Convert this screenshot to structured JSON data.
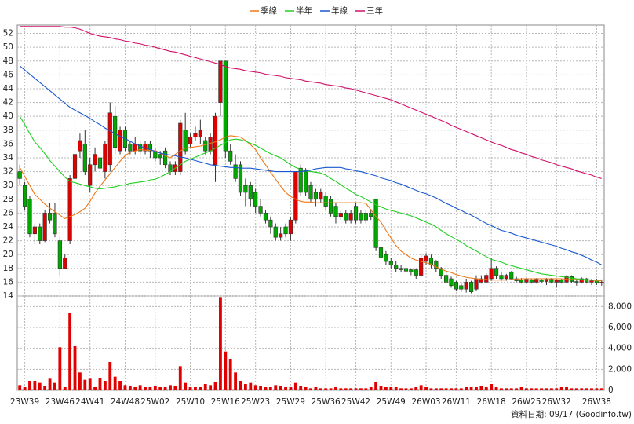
{
  "chart_data": [
    {
      "type": "candlestick",
      "categories": [
        null,
        "23W39",
        null,
        null,
        null,
        null,
        null,
        null,
        "23W46",
        null,
        null,
        null,
        null,
        null,
        "24W41",
        null,
        null,
        null,
        null,
        null,
        null,
        "24W48",
        null,
        null,
        null,
        null,
        null,
        "25W02",
        null,
        null,
        null,
        null,
        null,
        null,
        "25W10",
        null,
        null,
        null,
        null,
        null,
        null,
        "25W16",
        null,
        null,
        null,
        null,
        null,
        "25W23",
        null,
        null,
        null,
        null,
        null,
        null,
        "25W29",
        null,
        null,
        null,
        null,
        null,
        null,
        "25W36",
        null,
        null,
        null,
        null,
        null,
        "25W42",
        null,
        null,
        null,
        null,
        null,
        null,
        "25W49",
        null,
        null,
        null,
        null,
        null,
        null,
        "26W03",
        null,
        null,
        null,
        null,
        null,
        "26W11",
        null,
        null,
        null,
        null,
        null,
        null,
        "26W18",
        null,
        null,
        null,
        null,
        null,
        null,
        "26W25",
        null,
        null,
        null,
        null,
        null,
        "26W32",
        null,
        null,
        null,
        null,
        null,
        null,
        null,
        "26W38",
        null
      ],
      "open": [
        32,
        30,
        28,
        23,
        24,
        22,
        26,
        26,
        22,
        18,
        22,
        31,
        35,
        36,
        30,
        33,
        34,
        32,
        33,
        40,
        35,
        38,
        36,
        35,
        36,
        35,
        36,
        35,
        34.5,
        35,
        33,
        32,
        32,
        38,
        36,
        37,
        37,
        36.5,
        35,
        33,
        42,
        48,
        35,
        33,
        33,
        30,
        30,
        29,
        27,
        26,
        25,
        24,
        22.5,
        24,
        23,
        25,
        32.5,
        32,
        30,
        29,
        28,
        28.5,
        28,
        27,
        25.5,
        26,
        25,
        27,
        26,
        26,
        26,
        28,
        21,
        20,
        19,
        18.5,
        18,
        18,
        17.8,
        17.8,
        17,
        19,
        19.5,
        19,
        18,
        17,
        16.5,
        16,
        15.5,
        15,
        16,
        15,
        16,
        16,
        16.5,
        18,
        17,
        16.5,
        17.5,
        16.5,
        16.3,
        16,
        16.3,
        16,
        16.3,
        16.1,
        16.4,
        16,
        16.3,
        16,
        16.8,
        16.1,
        16,
        16.5,
        16,
        16.2,
        15.9
      ],
      "high": [
        33,
        30.5,
        28.5,
        24.5,
        24.5,
        26.5,
        27.5,
        27.5,
        22.5,
        20,
        31.5,
        39.5,
        37.5,
        38,
        34,
        35.5,
        36,
        36.5,
        42,
        41.5,
        38.5,
        38.5,
        36.5,
        37,
        36.5,
        36.5,
        36.5,
        35.5,
        35,
        35.5,
        33.5,
        33.5,
        39.5,
        40.5,
        37.5,
        38.5,
        39.5,
        37,
        37.5,
        40.5,
        48,
        48,
        36,
        34.5,
        33.5,
        31,
        30.5,
        29.5,
        28,
        26.5,
        25.5,
        24.5,
        24,
        24.5,
        25.5,
        32,
        33,
        32.5,
        30.5,
        29.5,
        29.5,
        29,
        28.5,
        27.5,
        26.5,
        26.5,
        26.5,
        27.5,
        26.5,
        26.5,
        26.5,
        28,
        21.5,
        20.5,
        19.5,
        19,
        18.5,
        18.3,
        18,
        18,
        20,
        20.2,
        20,
        19.2,
        18.2,
        17.5,
        16.8,
        16.2,
        16,
        16.5,
        16.2,
        17,
        17,
        17.3,
        19.5,
        18.3,
        17.4,
        17.2,
        17.6,
        16.8,
        16.6,
        16.6,
        16.5,
        16.6,
        16.5,
        16.6,
        16.6,
        16.5,
        16.5,
        17,
        17,
        16.5,
        16.7,
        16.6,
        16.5,
        16.5,
        16.4
      ],
      "low": [
        30,
        26.5,
        22.5,
        21.5,
        21.5,
        21.8,
        24.5,
        22.5,
        17,
        18,
        21.5,
        30.5,
        34,
        31.5,
        29,
        32,
        31.5,
        31,
        32,
        34.5,
        34.5,
        35,
        34.5,
        34.5,
        34.5,
        34.5,
        34,
        33.5,
        33,
        32.5,
        31.5,
        31.5,
        31.5,
        34.5,
        35.5,
        36.5,
        36,
        34.5,
        34.5,
        30.5,
        40,
        34,
        33,
        30.5,
        28.5,
        27,
        27,
        26,
        25.5,
        24.5,
        23,
        22,
        22,
        22.5,
        22,
        24.5,
        28.5,
        28.5,
        27.5,
        27,
        27.5,
        26.5,
        25.5,
        24.5,
        25,
        24.5,
        24.5,
        24.5,
        24.5,
        24.5,
        25,
        20.5,
        19,
        18.5,
        18,
        17.5,
        17.5,
        17.2,
        17,
        16.5,
        16.8,
        18.5,
        18,
        17.5,
        16.5,
        15.8,
        15.2,
        14.8,
        14.6,
        14.5,
        14.4,
        14.8,
        15.8,
        15.8,
        16.2,
        16.5,
        16.2,
        16.2,
        16.3,
        16,
        15.8,
        15.8,
        15.8,
        15.8,
        15.8,
        15.6,
        15.8,
        15.2,
        15.8,
        15.8,
        15.9,
        15.5,
        15.8,
        15.8,
        15.6,
        15.6,
        15.5
      ],
      "close": [
        31,
        27,
        23,
        24,
        22,
        26,
        25,
        23,
        18,
        19.5,
        31,
        34.5,
        36.5,
        32,
        33,
        34.5,
        32.5,
        36,
        40.5,
        35.5,
        38,
        35.5,
        35,
        36,
        35,
        36,
        35,
        34,
        34,
        33,
        32,
        33,
        39,
        35,
        37,
        37.5,
        38,
        35,
        37,
        40,
        48,
        35,
        33.5,
        31,
        29,
        29,
        28,
        27,
        26,
        25,
        24,
        22.5,
        23,
        23,
        25,
        32,
        29,
        29,
        28,
        28,
        29,
        27,
        26,
        25.5,
        26,
        25,
        26,
        25,
        25,
        25,
        25.5,
        21,
        19.5,
        19,
        18.5,
        18,
        17.8,
        17.6,
        17.5,
        17,
        19.5,
        19.8,
        18.5,
        18,
        17,
        16,
        15.5,
        15,
        15,
        16,
        14.6,
        16.5,
        16.5,
        17,
        18,
        17,
        16.5,
        17,
        16.5,
        16.2,
        16,
        16.4,
        16,
        16.4,
        16.1,
        16.4,
        16,
        16.3,
        16,
        16.8,
        16.1,
        16,
        16.5,
        16,
        16.2,
        15.9,
        16
      ],
      "up_color": "#e00000",
      "down_color": "#00a800",
      "series": [
        {
          "name": "季線",
          "color": "#f07818",
          "values": [
            32.6,
            31.3,
            30.0,
            28.7,
            28.0,
            27.3,
            26.7,
            26.2,
            25.7,
            25.2,
            25.5,
            25.8,
            26.2,
            26.7,
            27.7,
            28.9,
            29.9,
            30.8,
            31.7,
            32.6,
            33.5,
            34.3,
            34.8,
            35.0,
            35.2,
            35.1,
            35.1,
            35.0,
            34.7,
            34.3,
            34.0,
            34.5,
            35.0,
            35.4,
            35.5,
            35.6,
            35.7,
            35.9,
            36.1,
            36.3,
            36.6,
            37.0,
            37.2,
            37.1,
            37.0,
            36.5,
            35.9,
            35.2,
            34.0,
            33.0,
            31.9,
            30.9,
            29.9,
            29.0,
            28.4,
            28.0,
            27.7,
            27.6,
            27.6,
            27.5,
            27.5,
            27.5,
            27.5,
            27.5,
            27.5,
            27.5,
            27.5,
            27.5,
            27.5,
            27.4,
            26.5,
            25.5,
            24.7,
            23.5,
            22.4,
            21.3,
            20.5,
            20.0,
            19.5,
            19.2,
            19.0,
            18.8,
            18.6,
            18.2,
            17.9,
            17.6,
            17.4,
            17.1,
            16.9,
            16.7,
            16.6,
            16.5,
            16.4,
            16.4,
            16.3,
            16.3,
            16.3,
            16.3,
            16.4,
            16.4,
            16.5,
            16.5,
            16.5,
            16.5,
            16.5,
            16.5,
            16.5,
            16.5,
            16.5,
            16.4,
            16.4,
            16.4,
            16.3,
            16.3,
            16.3,
            16.2,
            16.2
          ]
        },
        {
          "name": "半年",
          "color": "#20d020",
          "values": [
            40.0,
            38.8,
            37.5,
            36.3,
            35.5,
            34.6,
            33.6,
            32.8,
            32.0,
            31.2,
            30.6,
            30.4,
            30.2,
            30.0,
            29.8,
            29.6,
            29.5,
            29.6,
            29.7,
            29.8,
            30.0,
            30.1,
            30.3,
            30.4,
            30.5,
            30.6,
            30.8,
            30.9,
            31.2,
            31.6,
            32.0,
            32.5,
            33.0,
            33.5,
            33.8,
            34.1,
            34.4,
            34.7,
            35.0,
            35.4,
            35.8,
            36.2,
            36.6,
            36.7,
            36.6,
            36.4,
            36.1,
            35.8,
            35.4,
            35.0,
            34.6,
            34.3,
            34.0,
            33.5,
            33.0,
            32.6,
            32.3,
            32.1,
            32.0,
            31.9,
            31.8,
            31.5,
            31.0,
            30.6,
            30.1,
            29.6,
            29.2,
            28.7,
            28.4,
            28.0,
            27.6,
            27.2,
            26.9,
            26.6,
            26.4,
            26.2,
            26.0,
            25.8,
            25.6,
            25.3,
            25.0,
            24.7,
            24.4,
            24.0,
            23.5,
            23.0,
            22.6,
            22.2,
            21.8,
            21.3,
            20.9,
            20.5,
            20.1,
            19.7,
            19.3,
            19.1,
            18.9,
            18.6,
            18.4,
            18.2,
            18.0,
            17.8,
            17.6,
            17.4,
            17.2,
            17.1,
            17.0,
            16.9,
            16.8,
            16.7,
            16.6,
            16.5,
            16.4,
            16.4,
            16.3,
            16.3,
            16.3
          ]
        },
        {
          "name": "年線",
          "color": "#1858d0",
          "values": [
            47.3,
            46.7,
            46.1,
            45.5,
            44.9,
            44.3,
            43.7,
            43.1,
            42.5,
            41.9,
            41.3,
            40.9,
            40.5,
            40.1,
            39.7,
            39.2,
            38.8,
            38.3,
            37.9,
            37.5,
            37.1,
            36.8,
            36.4,
            36.0,
            35.7,
            35.4,
            35.2,
            34.9,
            34.7,
            34.5,
            34.4,
            34.3,
            34.1,
            34.0,
            33.8,
            33.6,
            33.4,
            33.2,
            33.0,
            32.9,
            32.8,
            32.7,
            32.6,
            32.6,
            32.5,
            32.5,
            32.5,
            32.4,
            32.3,
            32.2,
            32.1,
            32.0,
            32.0,
            32.0,
            32.0,
            32.0,
            32.0,
            32.1,
            32.2,
            32.4,
            32.5,
            32.6,
            32.6,
            32.6,
            32.6,
            32.4,
            32.3,
            32.1,
            32.0,
            31.8,
            31.6,
            31.4,
            31.1,
            30.9,
            30.7,
            30.4,
            30.2,
            29.9,
            29.6,
            29.3,
            29.0,
            28.8,
            28.5,
            28.2,
            27.8,
            27.4,
            27.1,
            26.7,
            26.4,
            26.0,
            25.7,
            25.3,
            24.9,
            24.5,
            24.2,
            23.8,
            23.5,
            23.3,
            23.1,
            22.8,
            22.6,
            22.4,
            22.2,
            22.0,
            21.8,
            21.6,
            21.4,
            21.2,
            20.9,
            20.7,
            20.4,
            20.2,
            19.9,
            19.6,
            19.2,
            18.9,
            18.5
          ]
        },
        {
          "name": "三年",
          "color": "#d0106a",
          "values": [
            53.0,
            53.0,
            53.0,
            53.0,
            53.0,
            53.0,
            53.0,
            53.0,
            53.0,
            52.9,
            52.9,
            52.8,
            52.6,
            52.3,
            52.0,
            51.8,
            51.6,
            51.5,
            51.4,
            51.2,
            51.1,
            50.9,
            50.8,
            50.6,
            50.5,
            50.3,
            50.2,
            50.0,
            49.8,
            49.6,
            49.4,
            49.3,
            49.1,
            48.9,
            48.7,
            48.5,
            48.3,
            48.1,
            47.9,
            47.7,
            47.5,
            47.2,
            47.0,
            46.9,
            46.8,
            46.6,
            46.5,
            46.4,
            46.3,
            46.1,
            46.0,
            45.9,
            45.8,
            45.6,
            45.5,
            45.4,
            45.3,
            45.1,
            45.0,
            44.9,
            44.8,
            44.6,
            44.5,
            44.4,
            44.3,
            44.1,
            44.0,
            43.8,
            43.6,
            43.4,
            43.2,
            43.0,
            42.8,
            42.6,
            42.4,
            42.1,
            41.8,
            41.5,
            41.2,
            40.9,
            40.6,
            40.3,
            40.0,
            39.7,
            39.4,
            39.1,
            38.7,
            38.4,
            38.1,
            37.8,
            37.5,
            37.2,
            36.9,
            36.6,
            36.3,
            36.0,
            35.8,
            35.5,
            35.2,
            35.0,
            34.7,
            34.5,
            34.2,
            34.0,
            33.7,
            33.5,
            33.3,
            33.0,
            32.8,
            32.6,
            32.4,
            32.1,
            31.9,
            31.7,
            31.5,
            31.2,
            31.0
          ]
        }
      ],
      "ylim": [
        14,
        53.2
      ],
      "yticks": [
        14,
        16,
        18,
        20,
        22,
        24,
        26,
        28,
        30,
        32,
        34,
        36,
        38,
        40,
        42,
        44,
        46,
        48,
        50,
        52
      ],
      "grid": true,
      "legend": "top",
      "source": "資料日期: 09/17  (Goodinfo.tw)"
    },
    {
      "type": "bar",
      "color": "#e00000",
      "axis": "right",
      "values": [
        500,
        300,
        900,
        900,
        700,
        400,
        1100,
        700,
        4100,
        300,
        7400,
        4200,
        1700,
        1000,
        1100,
        300,
        1200,
        900,
        2700,
        1300,
        900,
        500,
        400,
        300,
        500,
        300,
        300,
        400,
        300,
        300,
        500,
        400,
        2300,
        700,
        300,
        300,
        300,
        600,
        500,
        800,
        8900,
        3700,
        3000,
        1700,
        900,
        600,
        700,
        500,
        400,
        300,
        300,
        500,
        400,
        300,
        300,
        700,
        400,
        300,
        200,
        300,
        200,
        200,
        200,
        300,
        200,
        200,
        200,
        200,
        200,
        200,
        300,
        800,
        400,
        300,
        300,
        300,
        200,
        200,
        200,
        300,
        500,
        300,
        200,
        200,
        200,
        200,
        200,
        200,
        200,
        300,
        300,
        300,
        400,
        300,
        600,
        300,
        200,
        200,
        200,
        200,
        300,
        200,
        200,
        200,
        200,
        200,
        200,
        200,
        300,
        300,
        200,
        200,
        200,
        200,
        200,
        200,
        200
      ],
      "ylim": [
        0,
        9000
      ],
      "yticks": [
        0,
        {
          "value": 2000,
          "label": "2,000"
        },
        {
          "value": 4000,
          "label": "4,000"
        },
        {
          "value": 6000,
          "label": "6,000"
        },
        {
          "value": 8000,
          "label": "8,000"
        }
      ]
    }
  ]
}
